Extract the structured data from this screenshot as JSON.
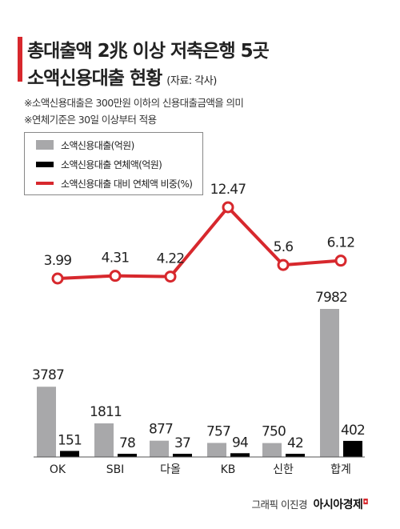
{
  "header": {
    "title_line1": "총대출액 2兆 이상 저축은행 5곳",
    "title_line2": "소액신용대출 현황",
    "source": "(자료: 각사)",
    "note1": "※소액신용대출은 300만원 이하의 신용대출금액을 의미",
    "note2": "※연체기준은 30일 이상부터 적용"
  },
  "legend": {
    "gray": "소액신용대출(억원)",
    "black": "소액신용대출 연체액(억원)",
    "red": "소액신용대출 대비 연체액 비중(%)"
  },
  "colors": {
    "loan_bar": "#a8a8aa",
    "delinquency_bar": "#000000",
    "ratio_line": "#d7282d"
  },
  "chart_data": {
    "type": "bar",
    "categories": [
      "OK",
      "SBI",
      "다올",
      "KB",
      "신한",
      "합계"
    ],
    "series": [
      {
        "name": "소액신용대출(억원)",
        "type": "bar",
        "values": [
          3787,
          1811,
          877,
          757,
          750,
          7982
        ]
      },
      {
        "name": "소액신용대출 연체액(억원)",
        "type": "bar",
        "values": [
          151,
          78,
          37,
          94,
          42,
          402
        ]
      },
      {
        "name": "소액신용대출 대비 연체액 비중(%)",
        "type": "line",
        "values": [
          3.99,
          4.31,
          4.22,
          12.47,
          5.6,
          6.12
        ]
      }
    ],
    "value_labels": {
      "loans": [
        "3787",
        "1811",
        "877",
        "757",
        "750",
        "7982"
      ],
      "delinquency": [
        "151",
        "78",
        "37",
        "94",
        "42",
        "402"
      ],
      "ratio": [
        "3.99",
        "4.31",
        "4.22",
        "12.47",
        "5.6",
        "6.12"
      ]
    },
    "legend_position": "top-left",
    "grid": false
  },
  "footer": {
    "credit": "그래픽 이진경",
    "brand": "아시아경제"
  }
}
